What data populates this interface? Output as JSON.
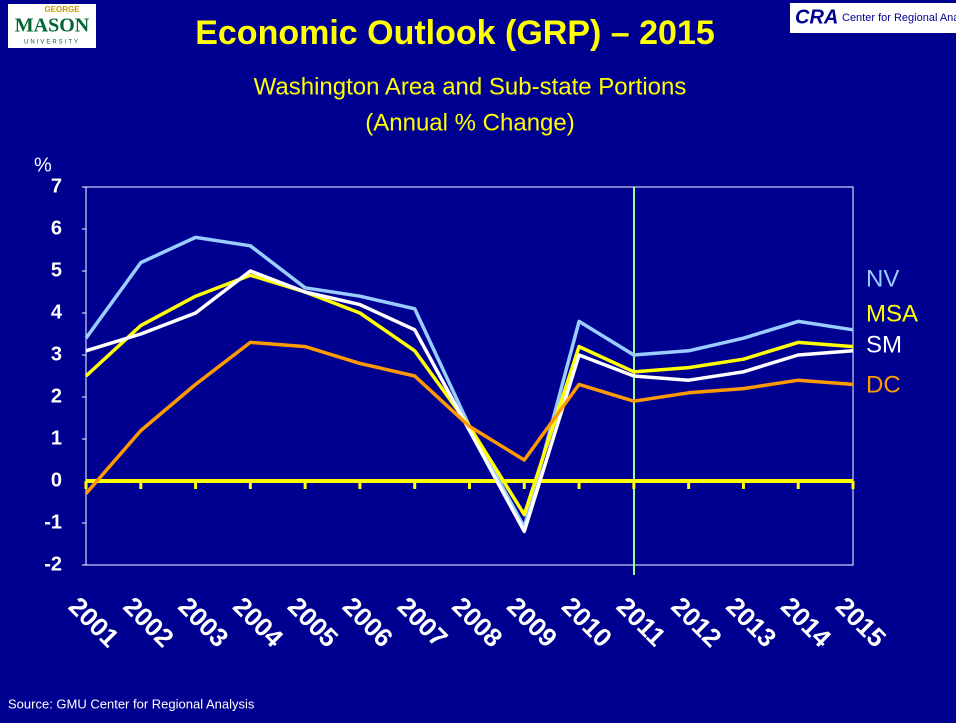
{
  "logo_left": {
    "top": "GEORGE",
    "main": "MASON",
    "bottom": "UNIVERSITY"
  },
  "logo_right": {
    "main": "CRA",
    "text": "Center for Regional Analy"
  },
  "source": "Source: GMU Center for Regional Analysis",
  "chart_data": {
    "type": "line",
    "title": "Economic Outlook (GRP) – 2015",
    "subtitle": [
      "Washington Area and Sub-state Portions",
      "(Annual % Change)"
    ],
    "y_label": "%",
    "categories": [
      "2001",
      "2002",
      "2003",
      "2004",
      "2005",
      "2006",
      "2007",
      "2008",
      "2009",
      "2010",
      "2011",
      "2012",
      "2013",
      "2014",
      "2015"
    ],
    "series": [
      {
        "name": "NV",
        "color": "#99ccff",
        "values": [
          3.4,
          5.2,
          5.8,
          5.6,
          4.6,
          4.4,
          4.1,
          1.3,
          -1.1,
          3.8,
          3.0,
          3.1,
          3.4,
          3.8,
          3.6
        ]
      },
      {
        "name": "MSA",
        "color": "#ffff00",
        "values": [
          2.5,
          3.7,
          4.4,
          4.9,
          4.5,
          4.0,
          3.1,
          1.3,
          -0.8,
          3.2,
          2.6,
          2.7,
          2.9,
          3.3,
          3.2
        ]
      },
      {
        "name": "SM",
        "color": "#ffffff",
        "values": [
          3.1,
          3.5,
          4.0,
          5.0,
          4.5,
          4.2,
          3.6,
          1.2,
          -1.2,
          3.0,
          2.5,
          2.4,
          2.6,
          3.0,
          3.1
        ]
      },
      {
        "name": "DC",
        "color": "#ff9900",
        "values": [
          -0.3,
          1.2,
          2.3,
          3.3,
          3.2,
          2.8,
          2.5,
          1.3,
          0.5,
          2.3,
          1.9,
          2.1,
          2.2,
          2.4,
          2.3
        ]
      }
    ],
    "ylim": [
      -2,
      7
    ],
    "yticks": [
      -2,
      -1,
      0,
      1,
      2,
      3,
      4,
      5,
      6,
      7
    ],
    "grid": false
  }
}
